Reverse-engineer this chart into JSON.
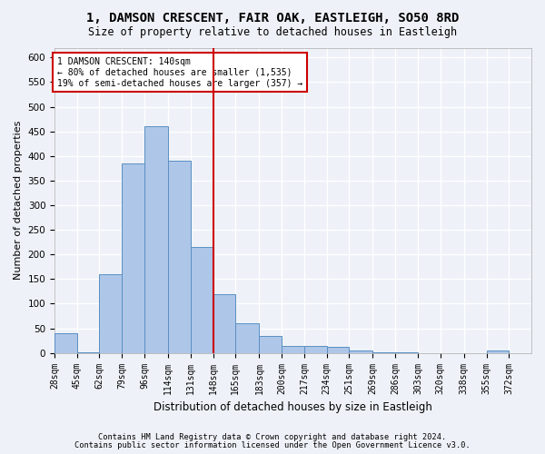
{
  "title": "1, DAMSON CRESCENT, FAIR OAK, EASTLEIGH, SO50 8RD",
  "subtitle": "Size of property relative to detached houses in Eastleigh",
  "xlabel": "Distribution of detached houses by size in Eastleigh",
  "ylabel": "Number of detached properties",
  "bin_labels": [
    "28sqm",
    "45sqm",
    "62sqm",
    "79sqm",
    "96sqm",
    "114sqm",
    "131sqm",
    "148sqm",
    "165sqm",
    "183sqm",
    "200sqm",
    "217sqm",
    "234sqm",
    "251sqm",
    "269sqm",
    "286sqm",
    "303sqm",
    "320sqm",
    "338sqm",
    "355sqm",
    "372sqm"
  ],
  "bin_starts": [
    28,
    45,
    62,
    79,
    96,
    114,
    131,
    148,
    165,
    183,
    200,
    217,
    234,
    251,
    269,
    286,
    303,
    320,
    338,
    355,
    372
  ],
  "bar_heights": [
    40,
    2,
    160,
    385,
    460,
    390,
    215,
    120,
    60,
    35,
    15,
    15,
    12,
    5,
    2,
    2,
    0,
    0,
    0,
    5,
    0
  ],
  "bar_color": "#aec6e8",
  "bar_edge_color": "#5a8fc2",
  "vline_x": 148,
  "vline_color": "#cc0000",
  "ylim": [
    0,
    620
  ],
  "yticks": [
    0,
    50,
    100,
    150,
    200,
    250,
    300,
    350,
    400,
    450,
    500,
    550,
    600
  ],
  "annotation_text": "1 DAMSON CRESCENT: 140sqm\n← 80% of detached houses are smaller (1,535)\n19% of semi-detached houses are larger (357) →",
  "annotation_box_facecolor": "#ffffff",
  "annotation_box_edgecolor": "#cc0000",
  "bg_color": "#eef2f8",
  "grid_color": "#ffffff",
  "footer_line1": "Contains HM Land Registry data © Crown copyright and database right 2024.",
  "footer_line2": "Contains public sector information licensed under the Open Government Licence v3.0."
}
